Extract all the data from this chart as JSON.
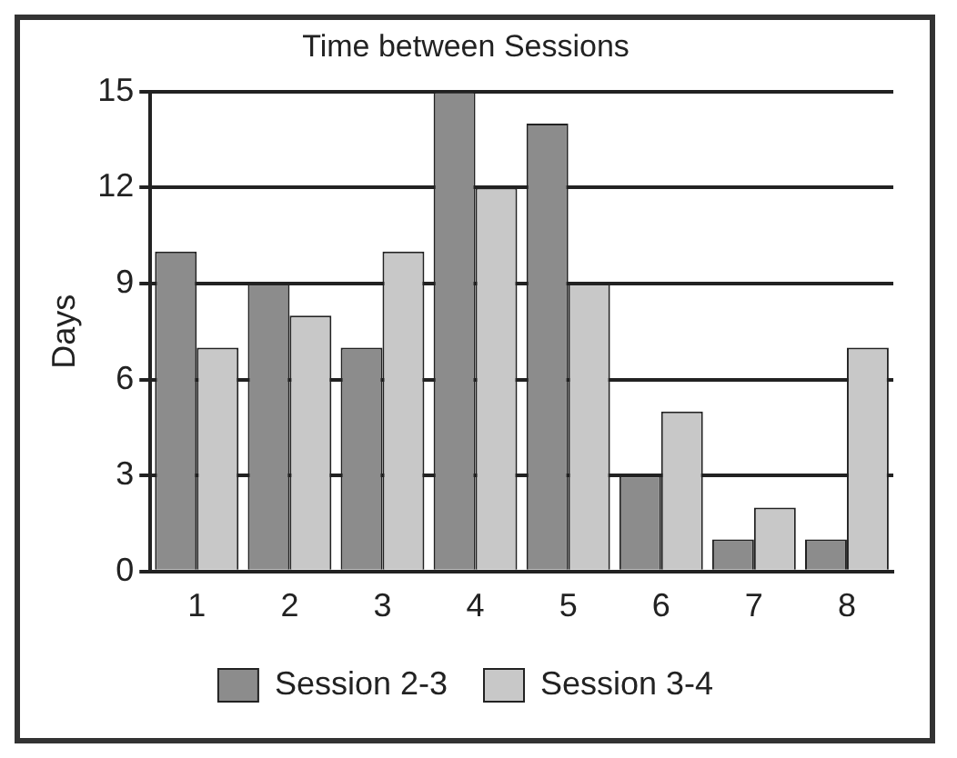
{
  "chart_data": {
    "type": "bar",
    "title": "Time between Sessions",
    "ylabel": "Days",
    "categories": [
      "1",
      "2",
      "3",
      "4",
      "5",
      "6",
      "7",
      "8"
    ],
    "series": [
      {
        "name": "Session 2-3",
        "color": "#8c8c8c",
        "values": [
          10,
          9,
          7,
          15,
          14,
          3,
          1,
          1
        ]
      },
      {
        "name": "Session 3-4",
        "color": "#c8c8c8",
        "values": [
          7,
          8,
          10,
          12,
          9,
          5,
          2,
          7
        ]
      }
    ],
    "ylim": [
      0,
      15
    ],
    "yticks": [
      0,
      3,
      6,
      9,
      12,
      15
    ],
    "grid": "y",
    "legend": "bottom"
  }
}
